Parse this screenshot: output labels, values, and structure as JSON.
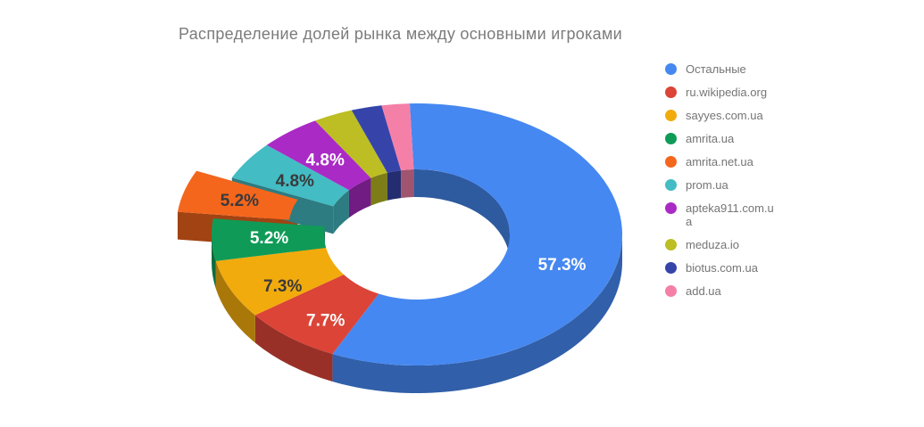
{
  "chart_data": {
    "type": "pie",
    "variant": "3d-donut",
    "title": "Распределение долей рынка между основными игроками",
    "unit": "%",
    "legend_position": "right",
    "start_angle_deg": -2,
    "title_color": "#7b7b7b",
    "legend_text_color": "#757575",
    "slices": [
      {
        "name": "Остальные",
        "value": 57.3,
        "label": "57.3%",
        "color": "#4688f1",
        "label_color": "#ffffff",
        "exploded": false
      },
      {
        "name": "ru.wikipedia.org",
        "value": 7.7,
        "label": "7.7%",
        "color": "#db4437",
        "label_color": "#ffffff",
        "exploded": false
      },
      {
        "name": "sayyes.com.ua",
        "value": 7.3,
        "label": "7.3%",
        "color": "#f2ab0d",
        "label_color": "#3a3a3a",
        "exploded": false
      },
      {
        "name": "amrita.ua",
        "value": 5.2,
        "label": "5.2%",
        "color": "#0f9b57",
        "label_color": "#ffffff",
        "exploded": false
      },
      {
        "name": "amrita.net.ua",
        "value": 5.2,
        "label": "5.2%",
        "color": "#f4661c",
        "label_color": "#3a3a3a",
        "exploded": true
      },
      {
        "name": "prom.ua",
        "value": 4.8,
        "label": "4.8%",
        "color": "#43bcc4",
        "label_color": "#3a3a3a",
        "exploded": false
      },
      {
        "name": "apteka911.com.ua",
        "value": 4.8,
        "label": "4.8%",
        "color": "#aa2ac6",
        "label_color": "#ffffff",
        "exploded": false
      },
      {
        "name": "meduza.io",
        "value": 3.1,
        "label": null,
        "color": "#bcbe23",
        "label_color": "#ffffff",
        "exploded": false
      },
      {
        "name": "biotus.com.ua",
        "value": 2.4,
        "label": null,
        "color": "#3644a9",
        "label_color": "#ffffff",
        "exploded": false
      },
      {
        "name": "add.ua",
        "value": 2.2,
        "label": null,
        "color": "#f480a8",
        "label_color": "#ffffff",
        "exploded": false
      }
    ]
  }
}
